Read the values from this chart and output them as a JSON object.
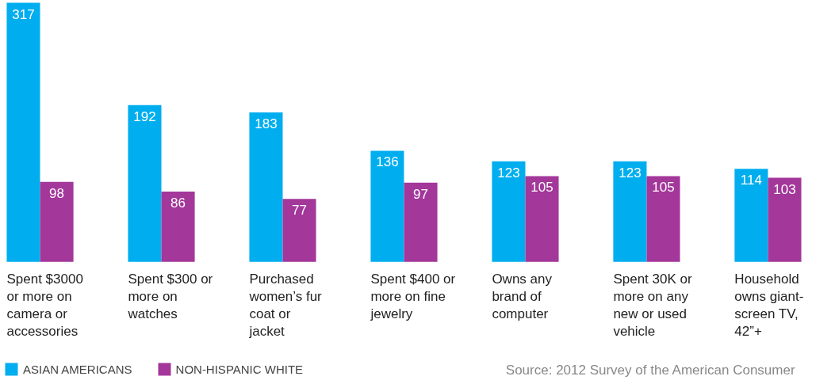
{
  "chart_data": {
    "type": "bar",
    "categories": [
      "Spent $3000 or more on camera or accessories",
      "Spent $300 or more on watches",
      "Purchased women’s fur coat or jacket",
      "Spent $400 or more on fine jewelry",
      "Owns any brand of computer",
      "Spent 30K or more on any new or used vehicle",
      "Household owns giant-screen TV, 42”+"
    ],
    "series": [
      {
        "name": "ASIAN AMERICANS",
        "color": "#00aeef",
        "values": [
          317,
          192,
          183,
          136,
          123,
          123,
          114
        ]
      },
      {
        "name": "NON-HISPANIC WHITE",
        "color": "#a3379a",
        "values": [
          98,
          86,
          77,
          97,
          105,
          105,
          103
        ]
      }
    ],
    "data_labels": true,
    "legend": "bottom left",
    "grid": false,
    "annotations": [
      "Source: 2012 Survey of the American Consumer"
    ]
  }
}
